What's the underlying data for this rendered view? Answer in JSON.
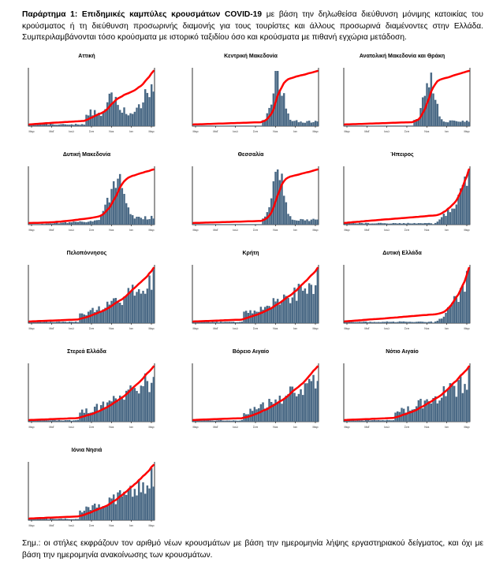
{
  "intro": {
    "bold": "Παράρτημα 1:  Επιδημικές καμπύλες κρουσμάτων COVID-19",
    "text": " με βάση την δηλωθείσα διεύθυνση μόνιμης κατοικίας του κρούσματος ή τη διεύθυνση προσωρινής διαμονής για τους τουρίστες και άλλους προσωρινά διαμένοντες στην Ελλάδα. Συμπεριλαμβάνονται τόσο κρούσματα με ιστορικό ταξιδίου όσο και κρούσματα με πιθανή εγχώρια μετάδοση."
  },
  "note": "Σημ.: οι στήλες εκφράζουν τον αριθμό νέων κρουσμάτων με βάση την ημερομηνία λήψης εργαστηριακού δείγματος, και όχι με βάση την ημερομηνία ανακοίνωσης των κρουσμάτων.",
  "colors": {
    "bars": "#4b6a86",
    "line": "#ff0000"
  },
  "chart_data": [
    {
      "type": "bar",
      "title": "Αττική",
      "x_ticks": [
        "Μαρ",
        "Μαΐ",
        "Ιουλ",
        "Σεπ",
        "Νοε",
        "Ιαν",
        "Μαρ"
      ],
      "shape": "attica"
    },
    {
      "type": "bar",
      "title": "Κεντρική Μακεδονία",
      "x_ticks": [
        "Μαρ",
        "Μαΐ",
        "Ιουλ",
        "Σεπ",
        "Νοε",
        "Ιαν",
        "Μαρ"
      ],
      "shape": "north"
    },
    {
      "type": "bar",
      "title": "Ανατολική Μακεδονία και Θράκη",
      "x_ticks": [
        "Μαρ",
        "Μαΐ",
        "Ιουλ",
        "Σεπ",
        "Νοε",
        "Ιαν",
        "Μαρ"
      ],
      "shape": "north"
    },
    {
      "type": "bar",
      "title": "Δυτική Μακεδονία",
      "x_ticks": [
        "Μαρ",
        "Μαΐ",
        "Ιουλ",
        "Σεπ",
        "Νοε",
        "Ιαν",
        "Μαρ"
      ],
      "shape": "west"
    },
    {
      "type": "bar",
      "title": "Θεσσαλία",
      "x_ticks": [
        "Μαρ",
        "Μαΐ",
        "Ιουλ",
        "Σεπ",
        "Νοε",
        "Ιαν",
        "Μαρ"
      ],
      "shape": "north"
    },
    {
      "type": "bar",
      "title": "Ήπειρος",
      "x_ticks": [
        "Μαρ",
        "Μαΐ",
        "Ιουλ",
        "Σεπ",
        "Νοε",
        "Ιαν",
        "Μαρ"
      ],
      "shape": "late"
    },
    {
      "type": "bar",
      "title": "Πελοπόννησος",
      "x_ticks": [
        "Μαρ",
        "Μαΐ",
        "Ιουλ",
        "Σεπ",
        "Νοε",
        "Ιαν",
        "Μαρ"
      ],
      "shape": "rising"
    },
    {
      "type": "bar",
      "title": "Κρήτη",
      "x_ticks": [
        "Μαρ",
        "Μαΐ",
        "Ιουλ",
        "Σεπ",
        "Νοε",
        "Ιαν",
        "Μαρ"
      ],
      "shape": "rising"
    },
    {
      "type": "bar",
      "title": "Δυτική Ελλάδα",
      "x_ticks": [
        "Μαρ",
        "Μαΐ",
        "Ιουλ",
        "Σεπ",
        "Νοε",
        "Ιαν",
        "Μαρ"
      ],
      "shape": "late"
    },
    {
      "type": "bar",
      "title": "Στερεά Ελλάδα",
      "x_ticks": [
        "Μαρ",
        "Μαΐ",
        "Ιουλ",
        "Σεπ",
        "Νοε",
        "Ιαν",
        "Μαρ"
      ],
      "shape": "rising"
    },
    {
      "type": "bar",
      "title": "Βόρειο Αιγαίο",
      "x_ticks": [
        "Μαρ",
        "Μαΐ",
        "Ιουλ",
        "Σεπ",
        "Νοε",
        "Ιαν",
        "Μαρ"
      ],
      "shape": "rising"
    },
    {
      "type": "bar",
      "title": "Νότιο Αιγαίο",
      "x_ticks": [
        "Μαρ",
        "Μαΐ",
        "Ιουλ",
        "Σεπ",
        "Νοε",
        "Ιαν",
        "Μαρ"
      ],
      "shape": "rising"
    },
    {
      "type": "bar",
      "title": "Ιόνια Νησιά",
      "x_ticks": [
        "Μαρ",
        "Μαΐ",
        "Ιουλ",
        "Σεπ",
        "Νοε",
        "Ιαν",
        "Μαρ"
      ],
      "shape": "rising"
    }
  ]
}
